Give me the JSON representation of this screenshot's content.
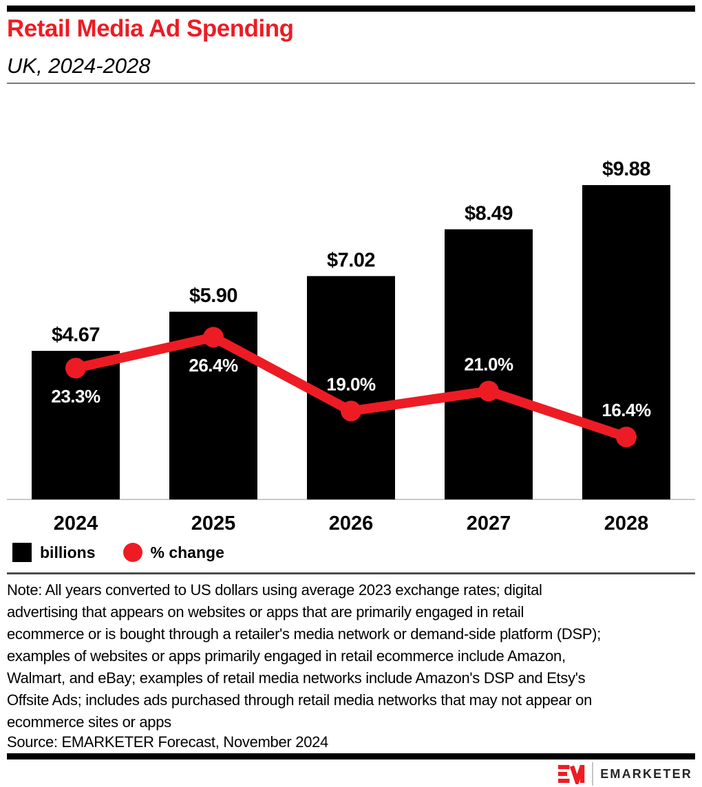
{
  "header": {
    "title": "Retail Media Ad Spending",
    "subtitle": "UK, 2024-2028"
  },
  "chart_data": {
    "type": "bar",
    "title": "Retail Media Ad Spending",
    "subtitle": "UK, 2024-2028",
    "categories": [
      "2024",
      "2025",
      "2026",
      "2027",
      "2028"
    ],
    "series": [
      {
        "name": "billions",
        "type": "bar",
        "values": [
          4.67,
          5.9,
          7.02,
          8.49,
          9.88
        ],
        "labels": [
          "$4.67",
          "$5.90",
          "$7.02",
          "$8.49",
          "$9.88"
        ],
        "color": "#000000"
      },
      {
        "name": "% change",
        "type": "line",
        "values": [
          23.3,
          26.4,
          19.0,
          21.0,
          16.4
        ],
        "labels": [
          "23.3%",
          "26.4%",
          "19.0%",
          "21.0%",
          "16.4%"
        ],
        "label_side": [
          "below",
          "below",
          "above",
          "above",
          "above"
        ],
        "color": "#ed1c24"
      }
    ],
    "xlabel": "",
    "ylabel": "",
    "ylim": [
      0,
      12.9
    ],
    "grid": false,
    "legend_position": "bottom-left"
  },
  "legend": {
    "bars_label": "billions",
    "line_label": "% change"
  },
  "footer": {
    "note": "Note: All years converted to US dollars using average 2023 exchange rates; digital\nadvertising that appears on websites or apps that are primarily engaged in retail\necommerce or is bought through a retailer's media network or demand-side platform (DSP);\nexamples of websites or apps primarily engaged in retail ecommerce include Amazon,\nWalmart, and eBay; examples of retail media networks include Amazon's DSP and Etsy's\nOffsite Ads; includes ads purchased through retail media networks that may not appear on\necommerce sites or apps",
    "source": "Source: EMARKETER Forecast, November 2024",
    "brand": "EMARKETER"
  },
  "colors": {
    "accent_red": "#ed1c24",
    "bar_black": "#000000",
    "baseline_gray": "#c9c9c9",
    "divider_gray": "#4d4d4d"
  }
}
